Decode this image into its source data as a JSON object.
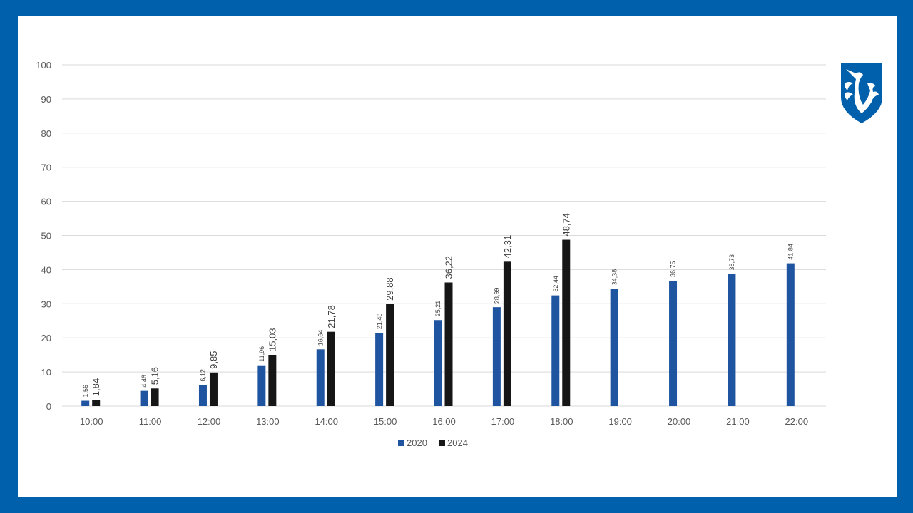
{
  "chart_data": {
    "type": "bar",
    "title": "",
    "xlabel": "",
    "ylabel": "",
    "ylim": [
      0,
      100
    ],
    "yticks": [
      0,
      10,
      20,
      30,
      40,
      50,
      60,
      70,
      80,
      90,
      100
    ],
    "grid": true,
    "legend_position": "bottom",
    "categories": [
      "10:00",
      "11:00",
      "12:00",
      "13:00",
      "14:00",
      "15:00",
      "16:00",
      "17:00",
      "18:00",
      "19:00",
      "20:00",
      "21:00",
      "22:00"
    ],
    "series": [
      {
        "name": "2020",
        "color": "#1f55a0",
        "values": [
          1.56,
          4.46,
          6.12,
          11.96,
          16.64,
          21.48,
          25.21,
          28.99,
          32.44,
          34.38,
          36.75,
          38.73,
          41.84
        ],
        "labels": [
          "1,56",
          "4,46",
          "6,12",
          "11,96",
          "16,64",
          "21,48",
          "25,21",
          "28,99",
          "32,44",
          "34,38",
          "36,75",
          "38,73",
          "41,84"
        ]
      },
      {
        "name": "2024",
        "color": "#161616",
        "values": [
          1.84,
          5.16,
          9.85,
          15.03,
          21.78,
          29.88,
          36.22,
          42.31,
          48.74,
          null,
          null,
          null,
          null
        ],
        "labels": [
          "1,84",
          "5,16",
          "9,85",
          "15,03",
          "21,78",
          "29,88",
          "36,22",
          "42,31",
          "48,74",
          null,
          null,
          null,
          null
        ]
      }
    ]
  },
  "logo": {
    "color": "#0060ac",
    "icon": "bird-shield-logo"
  },
  "frame_color": "#0060ac"
}
